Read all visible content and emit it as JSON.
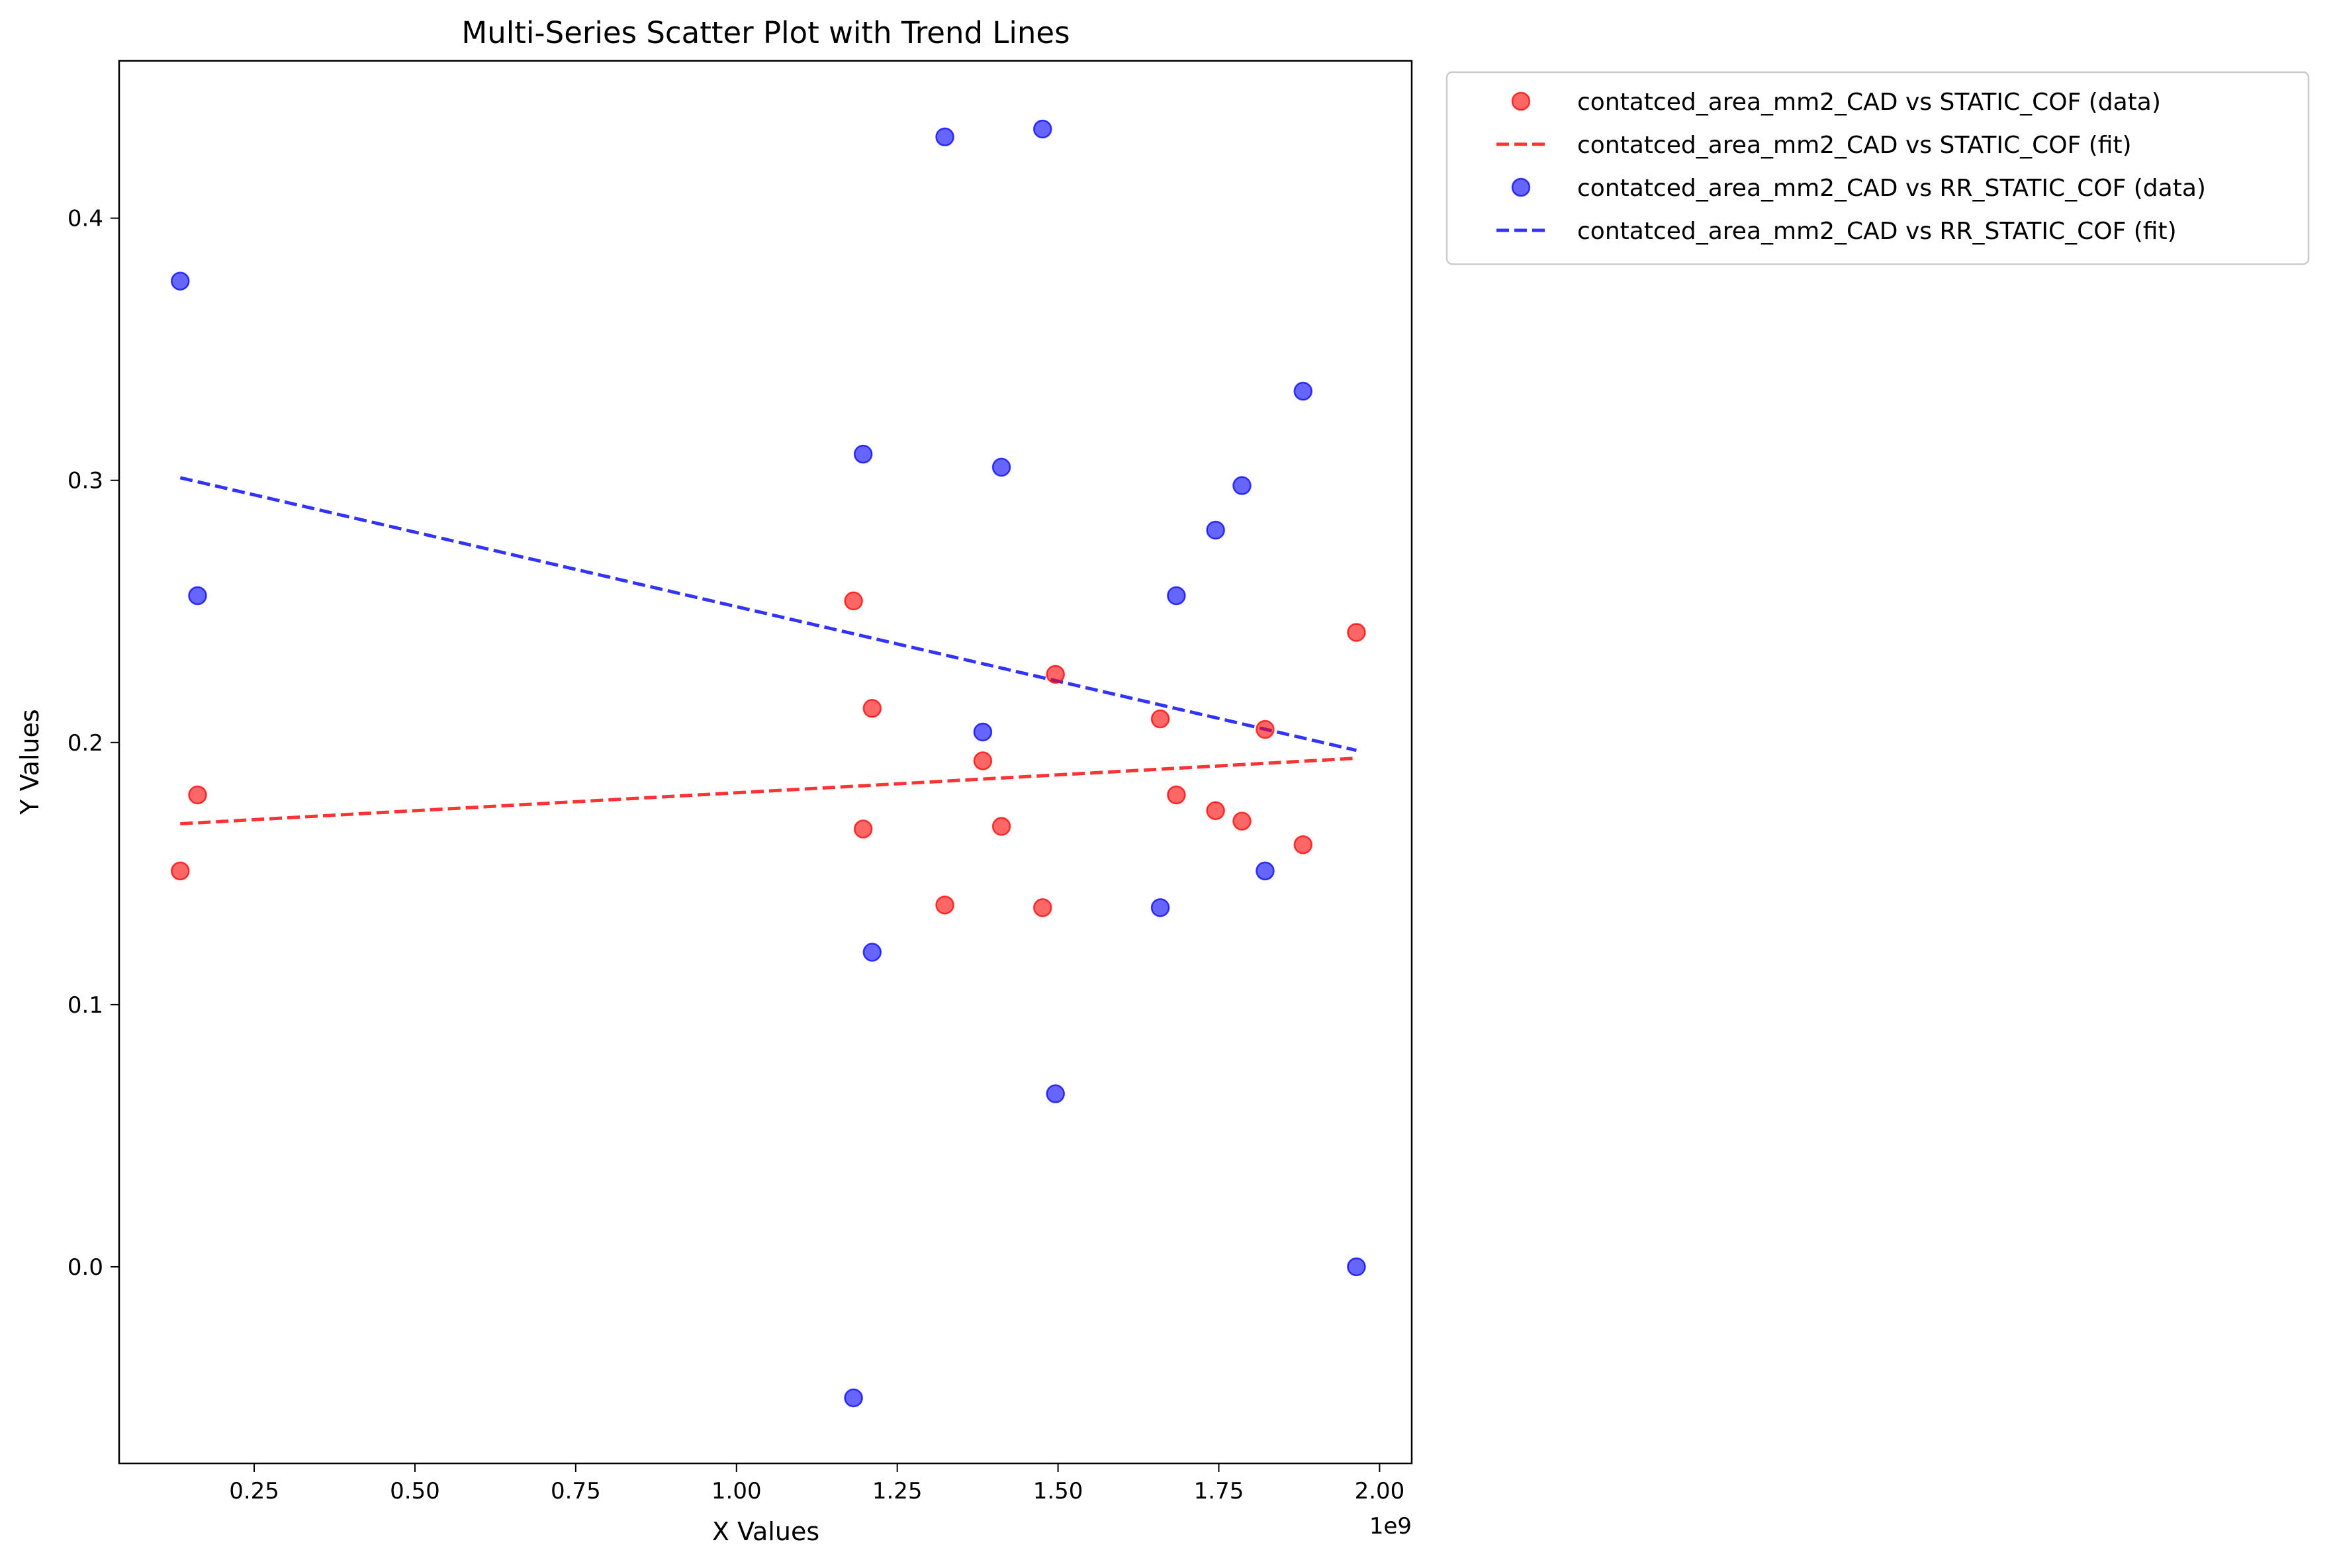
{
  "chart_data": {
    "type": "scatter",
    "title": "Multi-Series Scatter Plot with Trend Lines",
    "xlabel": "X Values",
    "ylabel": "Y Values",
    "x_offset_label": "1e9",
    "xlim": [
      0.04,
      2.05
    ],
    "ylim": [
      -0.075,
      0.46
    ],
    "x_ticks": [
      0.25,
      0.5,
      0.75,
      1.0,
      1.25,
      1.5,
      1.75,
      2.0
    ],
    "x_tick_labels": [
      "0.25",
      "0.50",
      "0.75",
      "1.00",
      "1.25",
      "1.50",
      "1.75",
      "2.00"
    ],
    "y_ticks": [
      0.0,
      0.1,
      0.2,
      0.3,
      0.4
    ],
    "y_tick_labels": [
      "0.0",
      "0.1",
      "0.2",
      "0.3",
      "0.4"
    ],
    "grid": false,
    "legend_position": "outside-top-right",
    "series": [
      {
        "name": "contatced_area_mm2_CAD vs STATIC_COF (data)",
        "kind": "points",
        "color": "#ff0000",
        "x": [
          0.135,
          0.162,
          1.182,
          1.197,
          1.211,
          1.324,
          1.383,
          1.412,
          1.476,
          1.496,
          1.659,
          1.684,
          1.745,
          1.786,
          1.822,
          1.881,
          1.964
        ],
        "y": [
          0.151,
          0.18,
          0.254,
          0.167,
          0.213,
          0.138,
          0.193,
          0.168,
          0.137,
          0.226,
          0.209,
          0.18,
          0.174,
          0.17,
          0.205,
          0.161,
          0.242
        ]
      },
      {
        "name": "contatced_area_mm2_CAD vs STATIC_COF (fit)",
        "kind": "line",
        "color": "#ff0000",
        "x": [
          0.135,
          1.964
        ],
        "y": [
          0.169,
          0.194
        ]
      },
      {
        "name": "contatced_area_mm2_CAD vs RR_STATIC_COF (data)",
        "kind": "points",
        "color": "#0000ff",
        "x": [
          0.135,
          0.162,
          1.182,
          1.197,
          1.211,
          1.324,
          1.383,
          1.412,
          1.476,
          1.496,
          1.659,
          1.684,
          1.745,
          1.786,
          1.822,
          1.881,
          1.964
        ],
        "y": [
          0.376,
          0.256,
          -0.05,
          0.31,
          0.12,
          0.431,
          0.204,
          0.305,
          0.434,
          0.066,
          0.137,
          0.256,
          0.281,
          0.298,
          0.151,
          0.334,
          0.0
        ]
      },
      {
        "name": "contatced_area_mm2_CAD vs RR_STATIC_COF (fit)",
        "kind": "line",
        "color": "#0000ff",
        "x": [
          0.135,
          1.964
        ],
        "y": [
          0.301,
          0.197
        ]
      }
    ]
  }
}
